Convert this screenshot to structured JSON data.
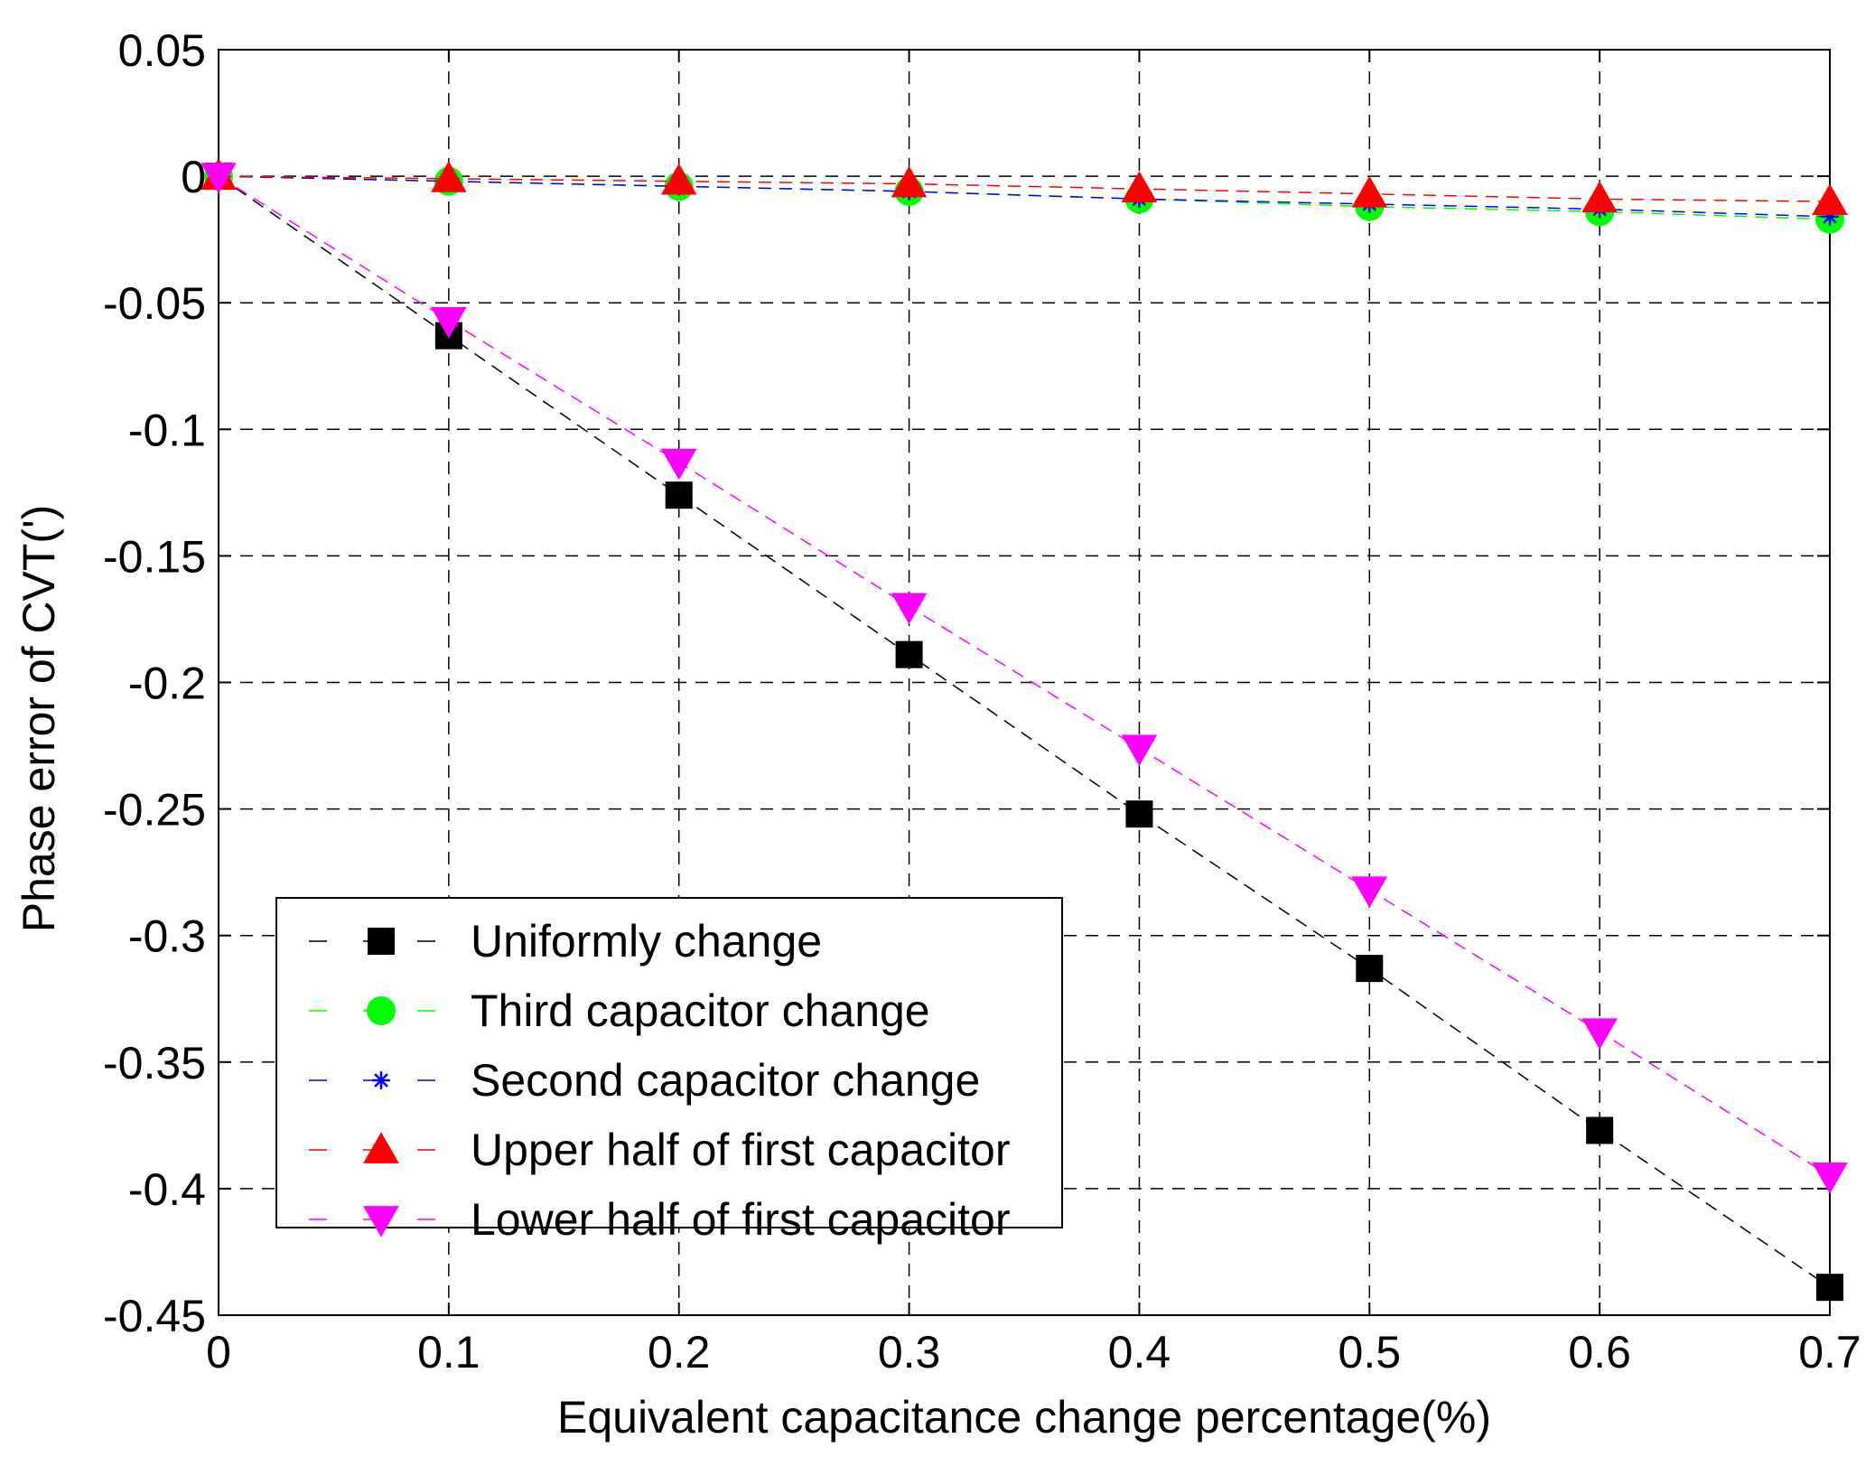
{
  "chart_data": {
    "type": "line",
    "title": "",
    "xlabel": "Equivalent capacitance change percentage(%)",
    "ylabel": "Phase error of CVT(')",
    "xlim": [
      0,
      0.7
    ],
    "ylim": [
      -0.45,
      0.05
    ],
    "grid": true,
    "legend_position": "bottom-left",
    "x": [
      0,
      0.1,
      0.2,
      0.3,
      0.4,
      0.5,
      0.6,
      0.7
    ],
    "x_tick_labels": [
      "0",
      "0.1",
      "0.2",
      "0.3",
      "0.4",
      "0.5",
      "0.6",
      "0.7"
    ],
    "y_ticks": [
      0.05,
      0,
      -0.05,
      -0.1,
      -0.15,
      -0.2,
      -0.25,
      -0.3,
      -0.35,
      -0.4,
      -0.45
    ],
    "y_tick_labels": [
      "0.05",
      "0",
      "-0.05",
      "-0.1",
      "-0.15",
      "-0.2",
      "-0.25",
      "-0.3",
      "-0.35",
      "-0.4",
      "-0.45"
    ],
    "series": [
      {
        "name": "Uniformly change",
        "color": "#000000",
        "marker": "square",
        "values": [
          0,
          -0.063,
          -0.126,
          -0.189,
          -0.252,
          -0.313,
          -0.377,
          -0.439
        ]
      },
      {
        "name": "Third capacitor change",
        "color": "#00ff00",
        "marker": "circle",
        "values": [
          0,
          -0.002,
          -0.004,
          -0.006,
          -0.009,
          -0.012,
          -0.014,
          -0.017
        ]
      },
      {
        "name": "Second capacitor change",
        "color": "#0000ff",
        "marker": "asterisk",
        "values": [
          0,
          -0.002,
          -0.004,
          -0.006,
          -0.009,
          -0.011,
          -0.013,
          -0.016
        ]
      },
      {
        "name": "Upper half of first capacitor",
        "color": "#ff0000",
        "marker": "triangle-up",
        "values": [
          0,
          -0.001,
          -0.002,
          -0.003,
          -0.005,
          -0.007,
          -0.009,
          -0.01
        ]
      },
      {
        "name": "Lower half of first capacitor",
        "color": "#ff00ff",
        "marker": "triangle-down",
        "values": [
          0,
          -0.057,
          -0.113,
          -0.17,
          -0.226,
          -0.282,
          -0.338,
          -0.395
        ]
      }
    ]
  }
}
